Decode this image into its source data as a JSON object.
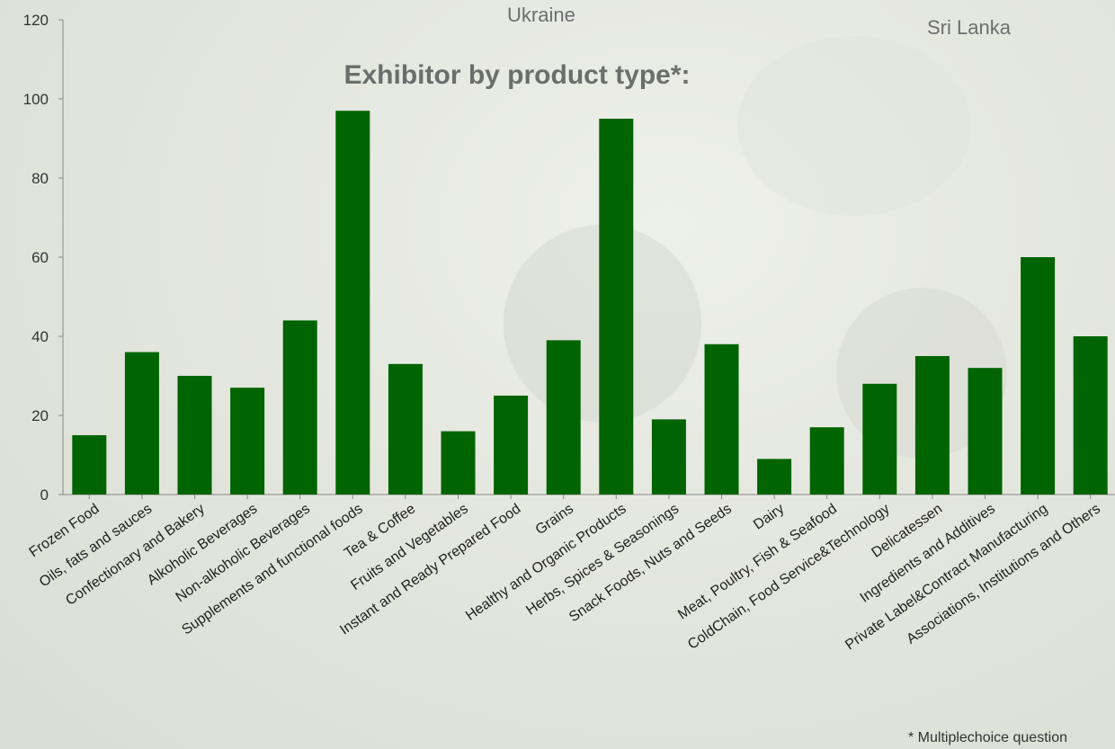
{
  "header": {
    "top_center_text": "Ukraine",
    "top_right_text": "Sri Lanka"
  },
  "footnote": "* Multiplechoice question",
  "colors": {
    "bar": "#006400",
    "axis": "#888888",
    "title": "#6b6f6b"
  },
  "chart_data": {
    "type": "bar",
    "title": "Exhibitor by product type*:",
    "xlabel": "",
    "ylabel": "",
    "ylim": [
      0,
      120
    ],
    "yticks": [
      0,
      20,
      40,
      60,
      80,
      100,
      120
    ],
    "grid": false,
    "categories": [
      "Frozen Food",
      "Oils, fats and sauces",
      "Confectionary and Bakery",
      "Alkoholic Beverages",
      "Non-alkoholic Beverages",
      "Supplements and functional foods",
      "Tea & Coffee",
      "Fruits and Vegetables",
      "Instant and Ready Prepared Food",
      "Grains",
      "Healthy and Organic Products",
      "Herbs, Spices & Seasonings",
      "Snack Foods, Nuts and Seeds",
      "Dairy",
      "Meat, Poultry, Fish & Seafood",
      "ColdChain, Food Service&Technology",
      "Delicatessen",
      "Ingredients and Additives",
      "Private Label&Contract Manufacturing",
      "Associations, Institutions and Others"
    ],
    "values": [
      15,
      36,
      30,
      27,
      44,
      97,
      33,
      16,
      25,
      39,
      95,
      19,
      38,
      9,
      17,
      28,
      35,
      32,
      60,
      40
    ]
  }
}
